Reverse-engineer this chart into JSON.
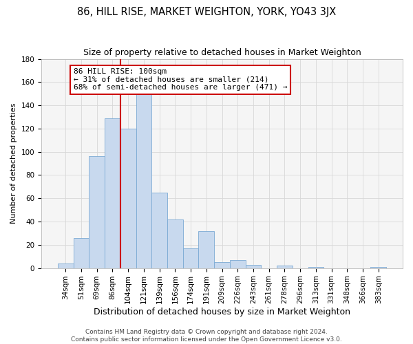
{
  "title": "86, HILL RISE, MARKET WEIGHTON, YORK, YO43 3JX",
  "subtitle": "Size of property relative to detached houses in Market Weighton",
  "xlabel": "Distribution of detached houses by size in Market Weighton",
  "ylabel": "Number of detached properties",
  "bar_labels": [
    "34sqm",
    "51sqm",
    "69sqm",
    "86sqm",
    "104sqm",
    "121sqm",
    "139sqm",
    "156sqm",
    "174sqm",
    "191sqm",
    "209sqm",
    "226sqm",
    "243sqm",
    "261sqm",
    "278sqm",
    "296sqm",
    "313sqm",
    "331sqm",
    "348sqm",
    "366sqm",
    "383sqm"
  ],
  "bar_heights": [
    4,
    26,
    96,
    129,
    120,
    150,
    65,
    42,
    17,
    32,
    5,
    7,
    3,
    0,
    2,
    0,
    1,
    0,
    0,
    0,
    1
  ],
  "bar_color": "#c8d9ee",
  "bar_edge_color": "#7baad4",
  "vline_color": "#cc0000",
  "annotation_text": "86 HILL RISE: 100sqm\n← 31% of detached houses are smaller (214)\n68% of semi-detached houses are larger (471) →",
  "annotation_box_color": "white",
  "annotation_box_edge": "#cc0000",
  "ylim": [
    0,
    180
  ],
  "yticks": [
    0,
    20,
    40,
    60,
    80,
    100,
    120,
    140,
    160,
    180
  ],
  "footer1": "Contains HM Land Registry data © Crown copyright and database right 2024.",
  "footer2": "Contains public sector information licensed under the Open Government Licence v3.0.",
  "title_fontsize": 10.5,
  "subtitle_fontsize": 9,
  "xlabel_fontsize": 9,
  "ylabel_fontsize": 8,
  "tick_fontsize": 7.5,
  "annotation_fontsize": 8,
  "footer_fontsize": 6.5,
  "grid_color": "#d8d8d8",
  "bg_color": "#f5f5f5"
}
